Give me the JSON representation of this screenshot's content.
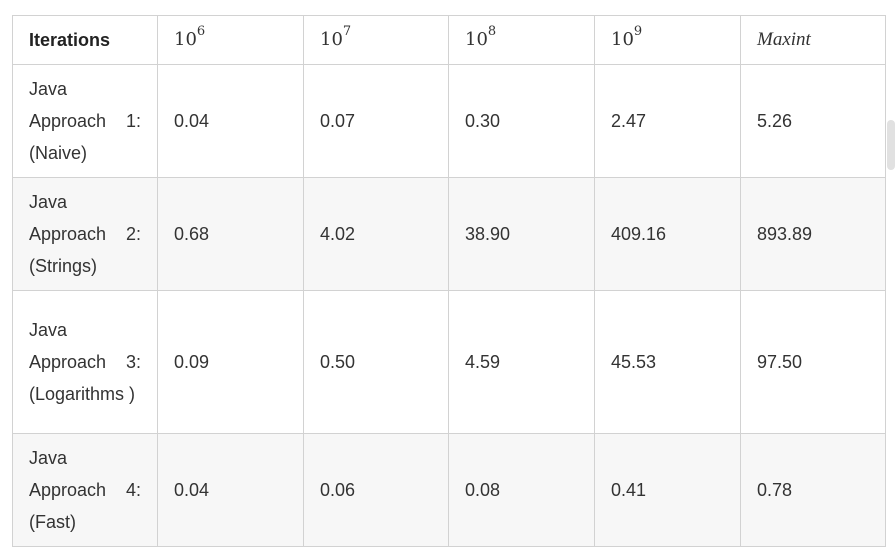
{
  "table": {
    "header": {
      "label": "Iterations",
      "columns": [
        {
          "base": "10",
          "exp": "6"
        },
        {
          "base": "10",
          "exp": "7"
        },
        {
          "base": "10",
          "exp": "8"
        },
        {
          "base": "10",
          "exp": "9"
        },
        {
          "text": "Maxint"
        }
      ]
    },
    "rows": [
      {
        "label": "Java Approach 1: (Naive)",
        "values": [
          "0.04",
          "0.07",
          "0.30",
          "2.47",
          "5.26"
        ]
      },
      {
        "label": "Java Approach 2: (Strings)",
        "values": [
          "0.68",
          "4.02",
          "38.90",
          "409.16",
          "893.89"
        ]
      },
      {
        "label": "Java Approach 3: (Logarithms )",
        "values": [
          "0.09",
          "0.50",
          "4.59",
          "45.53",
          "97.50"
        ]
      },
      {
        "label": "Java Approach 4: (Fast)",
        "values": [
          "0.04",
          "0.06",
          "0.08",
          "0.41",
          "0.78"
        ]
      }
    ]
  }
}
